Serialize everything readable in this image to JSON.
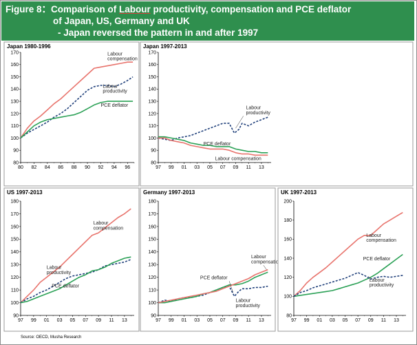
{
  "banner": {
    "prefix": "Figure 8：Comparison of ",
    "underlined": "Labour",
    "rest1": " productivity, compensation and PCE deflator",
    "line2": "of Japan, US, Germany and UK",
    "line3": "- Japan reversed the pattern in and after 1997"
  },
  "source": "Source: OECD, Musha Research",
  "colors": {
    "banner_bg": "#2f8f4e",
    "compensation": "#e8736c",
    "productivity": "#1f3f7a",
    "pce": "#2aa055"
  },
  "chart_data": [
    {
      "id": "japan-1980-1996",
      "type": "line",
      "title": "Japan   1980-1996",
      "xlabel": "",
      "ylabel": "",
      "xlim": [
        80,
        97
      ],
      "ylim": [
        80,
        170
      ],
      "yticks": [
        "80",
        "90",
        "100",
        "110",
        "120",
        "130",
        "140",
        "150",
        "160",
        "170"
      ],
      "yticks_values": [
        80,
        90,
        100,
        110,
        120,
        130,
        140,
        150,
        160,
        170
      ],
      "xticks": [
        "80",
        "82",
        "84",
        "86",
        "88",
        "90",
        "92",
        "94",
        "96"
      ],
      "xticks_values": [
        80,
        82,
        84,
        86,
        88,
        90,
        92,
        94,
        96
      ],
      "series": [
        {
          "key": "compensation",
          "dash": false,
          "x": [
            80,
            81,
            82,
            83,
            84,
            85,
            86,
            87,
            88,
            89,
            90,
            91,
            92,
            93,
            94,
            95,
            96,
            96.8
          ],
          "y": [
            100,
            108,
            114,
            118,
            123,
            128,
            132,
            137,
            142,
            147,
            152,
            157,
            158,
            159,
            160,
            161,
            162,
            162
          ]
        },
        {
          "key": "productivity",
          "dash": true,
          "x": [
            80,
            81,
            82,
            83,
            84,
            85,
            86,
            87,
            88,
            89,
            90,
            91,
            92,
            93,
            94,
            95,
            96,
            96.8
          ],
          "y": [
            100,
            104,
            107,
            110,
            113,
            117,
            120,
            124,
            129,
            134,
            139,
            142,
            143,
            143,
            142,
            144,
            147,
            150
          ]
        },
        {
          "key": "pce",
          "dash": false,
          "x": [
            80,
            81,
            82,
            83,
            84,
            85,
            86,
            87,
            88,
            89,
            90,
            91,
            92,
            93,
            94,
            95,
            96,
            96.8
          ],
          "y": [
            100,
            105,
            110,
            113,
            115,
            116,
            117,
            118,
            119,
            121,
            124,
            127,
            129,
            130,
            130,
            130,
            130,
            130
          ]
        }
      ],
      "annotations": [
        {
          "text": "Labour",
          "x": 93.0,
          "y": 167.5
        },
        {
          "text": "compensation",
          "x": 93.0,
          "y": 163.5
        },
        {
          "text": "Labour",
          "x": 92.3,
          "y": 141.0
        },
        {
          "text": "productivity",
          "x": 92.3,
          "y": 137.0
        },
        {
          "text": "PCE deflator",
          "x": 92.0,
          "y": 125.5
        }
      ]
    },
    {
      "id": "japan-1997-2013",
      "type": "line",
      "title": "Japan   1997-2013",
      "xlabel": "",
      "ylabel": "",
      "xlim": [
        97,
        114.5
      ],
      "ylim": [
        80,
        170
      ],
      "yticks": [
        "80",
        "90",
        "100",
        "110",
        "120",
        "130",
        "140",
        "150",
        "160",
        "170"
      ],
      "yticks_values": [
        80,
        90,
        100,
        110,
        120,
        130,
        140,
        150,
        160,
        170
      ],
      "xticks": [
        "97",
        "99",
        "01",
        "03",
        "05",
        "07",
        "09",
        "11",
        "13"
      ],
      "xticks_values": [
        97,
        99,
        101,
        103,
        105,
        107,
        109,
        111,
        113
      ],
      "series": [
        {
          "key": "productivity",
          "dash": true,
          "x": [
            97,
            98,
            99,
            100,
            101,
            102,
            103,
            104,
            105,
            106,
            107,
            108,
            108.8,
            109.5,
            110,
            111,
            112,
            113,
            114
          ],
          "y": [
            100,
            99,
            98,
            100,
            101,
            102,
            104,
            106,
            108,
            110,
            112,
            112,
            104,
            107,
            112,
            110,
            113,
            115,
            117
          ]
        },
        {
          "key": "pce",
          "dash": false,
          "x": [
            97,
            98,
            99,
            100,
            101,
            102,
            103,
            104,
            105,
            106,
            107,
            108,
            109,
            110,
            111,
            112,
            113,
            114
          ],
          "y": [
            101,
            101,
            100,
            99,
            98,
            96,
            95,
            94,
            94,
            93,
            93,
            93,
            91,
            90,
            89,
            89,
            88,
            88
          ]
        },
        {
          "key": "compensation",
          "dash": false,
          "x": [
            97,
            98,
            99,
            100,
            101,
            102,
            103,
            104,
            105,
            106,
            107,
            108,
            109,
            110,
            111,
            112,
            113,
            114
          ],
          "y": [
            100,
            100,
            98,
            97,
            96,
            94,
            93,
            92,
            91,
            91,
            91,
            90,
            88,
            87,
            87,
            86,
            86,
            86
          ]
        }
      ],
      "annotations": [
        {
          "text": "Labour",
          "x": 110.6,
          "y": 123.5
        },
        {
          "text": "productivity",
          "x": 110.6,
          "y": 119.5
        },
        {
          "text": "PCE deflator",
          "x": 104.0,
          "y": 94.0
        },
        {
          "text": "Labour compensation",
          "x": 105.8,
          "y": 82.0
        }
      ]
    },
    {
      "id": "us-1997-2013",
      "type": "line",
      "title": "US   1997-2013",
      "xlabel": "",
      "ylabel": "",
      "xlim": [
        97,
        114.5
      ],
      "ylim": [
        90,
        180
      ],
      "yticks": [
        "90",
        "100",
        "110",
        "120",
        "130",
        "140",
        "150",
        "160",
        "170",
        "180"
      ],
      "yticks_values": [
        90,
        100,
        110,
        120,
        130,
        140,
        150,
        160,
        170,
        180
      ],
      "xticks": [
        "97",
        "99",
        "01",
        "03",
        "05",
        "07",
        "09",
        "11",
        "13"
      ],
      "xticks_values": [
        97,
        99,
        101,
        103,
        105,
        107,
        109,
        111,
        113
      ],
      "series": [
        {
          "key": "compensation",
          "dash": false,
          "x": [
            97,
            98,
            99,
            100,
            101,
            102,
            103,
            104,
            105,
            106,
            107,
            108,
            109,
            110,
            111,
            112,
            113,
            114
          ],
          "y": [
            100,
            105,
            110,
            116,
            120,
            124,
            128,
            133,
            138,
            143,
            148,
            153,
            155,
            159,
            163,
            167,
            170,
            174
          ]
        },
        {
          "key": "productivity",
          "dash": true,
          "x": [
            97,
            98,
            99,
            100,
            101,
            102,
            103,
            104,
            105,
            106,
            107,
            108,
            109,
            110,
            111,
            112,
            113,
            114
          ],
          "y": [
            100,
            103,
            105,
            108,
            110,
            113,
            116,
            119,
            121,
            122,
            123,
            124,
            126,
            129,
            130,
            131,
            132,
            134
          ]
        },
        {
          "key": "pce",
          "dash": false,
          "x": [
            97,
            98,
            99,
            100,
            101,
            102,
            103,
            104,
            105,
            106,
            107,
            108,
            109,
            110,
            111,
            112,
            113,
            114
          ],
          "y": [
            100,
            101,
            103,
            105,
            107,
            109,
            111,
            114,
            117,
            120,
            122,
            125,
            126,
            128,
            131,
            133,
            135,
            136
          ]
        }
      ],
      "annotations": [
        {
          "text": "Labour",
          "x": 108.2,
          "y": 161.5
        },
        {
          "text": "compensation",
          "x": 108.2,
          "y": 157.5
        },
        {
          "text": "Labour",
          "x": 101.0,
          "y": 126.5
        },
        {
          "text": "productivity",
          "x": 101.0,
          "y": 122.5
        },
        {
          "text": "PCE deflator",
          "x": 101.8,
          "y": 112.0
        }
      ]
    },
    {
      "id": "germany-1997-2013",
      "type": "line",
      "title": "Germany   1997-2013",
      "xlabel": "",
      "ylabel": "",
      "xlim": [
        97,
        114.5
      ],
      "ylim": [
        90,
        180
      ],
      "yticks": [
        "90",
        "100",
        "110",
        "120",
        "130",
        "140",
        "150",
        "160",
        "170",
        "180"
      ],
      "yticks_values": [
        90,
        100,
        110,
        120,
        130,
        140,
        150,
        160,
        170,
        180
      ],
      "xticks": [
        "97",
        "99",
        "01",
        "03",
        "05",
        "07",
        "09",
        "11",
        "13"
      ],
      "xticks_values": [
        97,
        99,
        101,
        103,
        105,
        107,
        109,
        111,
        113
      ],
      "series": [
        {
          "key": "productivity",
          "dash": true,
          "x": [
            97,
            98,
            99,
            100,
            101,
            102,
            103,
            104,
            105,
            106,
            107,
            108,
            108.8,
            109.5,
            110,
            111,
            112,
            113,
            114
          ],
          "y": [
            100,
            102,
            101,
            103,
            104,
            104,
            105,
            106,
            108,
            110,
            112,
            113,
            105,
            109,
            111,
            111,
            112,
            112,
            113
          ]
        },
        {
          "key": "pce",
          "dash": false,
          "x": [
            97,
            98,
            99,
            100,
            101,
            102,
            103,
            104,
            105,
            106,
            107,
            108,
            109,
            110,
            111,
            112,
            113,
            114
          ],
          "y": [
            100,
            100,
            101,
            102,
            103,
            104,
            105,
            107,
            108,
            110,
            112,
            114,
            114,
            115,
            117,
            120,
            122,
            124
          ]
        },
        {
          "key": "compensation",
          "dash": false,
          "x": [
            97,
            98,
            99,
            100,
            101,
            102,
            103,
            104,
            105,
            106,
            107,
            108,
            109,
            110,
            111,
            112,
            113,
            114
          ],
          "y": [
            100,
            101,
            102,
            103,
            104,
            105,
            106,
            107,
            108,
            109,
            111,
            113,
            115,
            117,
            119,
            122,
            124,
            126
          ]
        }
      ],
      "annotations": [
        {
          "text": "Labour",
          "x": 111.4,
          "y": 135.0
        },
        {
          "text": "compensation",
          "x": 111.4,
          "y": 131.0
        },
        {
          "text": "PCE deflator",
          "x": 103.5,
          "y": 118.5
        },
        {
          "text": "Labour",
          "x": 109.0,
          "y": 100.5
        },
        {
          "text": "productivity",
          "x": 109.0,
          "y": 96.5
        }
      ]
    },
    {
      "id": "uk-1997-2013",
      "type": "line",
      "title": "UK   1997-2013",
      "xlabel": "",
      "ylabel": "",
      "xlim": [
        97,
        114.5
      ],
      "ylim": [
        80,
        200
      ],
      "yticks": [
        "80",
        "100",
        "120",
        "140",
        "160",
        "180",
        "200"
      ],
      "yticks_values": [
        80,
        100,
        120,
        140,
        160,
        180,
        200
      ],
      "xticks": [
        "97",
        "99",
        "01",
        "03",
        "05",
        "07",
        "09",
        "11",
        "13"
      ],
      "xticks_values": [
        97,
        99,
        101,
        103,
        105,
        107,
        109,
        111,
        113
      ],
      "series": [
        {
          "key": "compensation",
          "dash": false,
          "x": [
            97,
            98,
            99,
            100,
            101,
            102,
            103,
            104,
            105,
            106,
            107,
            108,
            109,
            110,
            111,
            112,
            113,
            114
          ],
          "y": [
            100,
            106,
            114,
            120,
            125,
            130,
            136,
            142,
            148,
            154,
            160,
            164,
            164,
            170,
            176,
            180,
            184,
            188
          ]
        },
        {
          "key": "pce",
          "dash": false,
          "x": [
            97,
            98,
            99,
            100,
            101,
            102,
            103,
            104,
            105,
            106,
            107,
            108,
            109,
            110,
            111,
            112,
            113,
            114
          ],
          "y": [
            100,
            101,
            102,
            103,
            104,
            105,
            106,
            108,
            110,
            112,
            114,
            117,
            120,
            124,
            129,
            134,
            139,
            144
          ]
        },
        {
          "key": "productivity",
          "dash": true,
          "x": [
            97,
            98,
            99,
            100,
            101,
            102,
            103,
            104,
            105,
            106,
            107,
            108,
            109,
            110,
            111,
            112,
            113,
            114
          ],
          "y": [
            100,
            104,
            106,
            109,
            111,
            113,
            115,
            117,
            119,
            122,
            125,
            122,
            118,
            120,
            121,
            120,
            121,
            122
          ]
        }
      ],
      "annotations": [
        {
          "text": "Labour",
          "x": 108.3,
          "y": 162.5
        },
        {
          "text": "compensation",
          "x": 108.3,
          "y": 157.5
        },
        {
          "text": "PCE deflator",
          "x": 107.8,
          "y": 138.0
        },
        {
          "text": "Labour",
          "x": 108.8,
          "y": 115.5
        },
        {
          "text": "productivity",
          "x": 108.8,
          "y": 110.5
        }
      ]
    }
  ]
}
